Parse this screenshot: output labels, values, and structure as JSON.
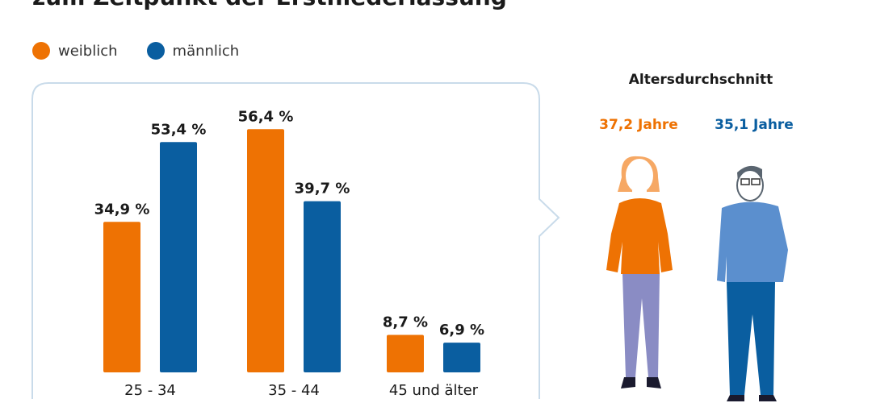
{
  "title": "zum Zeitpunkt der Erstniederlassung",
  "legend": [
    {
      "label": "weiblich",
      "color": "#EE7203"
    },
    {
      "label": "männlich",
      "color": "#0A5EA0"
    }
  ],
  "chart_data": {
    "type": "bar",
    "categories": [
      "25 - 34",
      "35 - 44",
      "45 und älter"
    ],
    "series": [
      {
        "name": "weiblich",
        "color": "#EE7203",
        "values": [
          34.9,
          56.4,
          8.7
        ],
        "labels": [
          "34,9 %",
          "56,4 %",
          "8,7 %"
        ]
      },
      {
        "name": "männlich",
        "color": "#0A5EA0",
        "values": [
          53.4,
          39.7,
          6.9
        ],
        "labels": [
          "53,4 %",
          "39,7 %",
          "6,9 %"
        ]
      }
    ],
    "ylim": [
      0,
      60
    ],
    "title": "zum Zeitpunkt der Erstniederlassung"
  },
  "average": {
    "heading": "Altersdurchschnitt",
    "female": {
      "label": "37,2 Jahre",
      "color": "#EE7203",
      "figure": "woman-figure"
    },
    "male": {
      "label": "35,1 Jahre",
      "color": "#0A5EA0",
      "figure": "man-figure"
    }
  }
}
